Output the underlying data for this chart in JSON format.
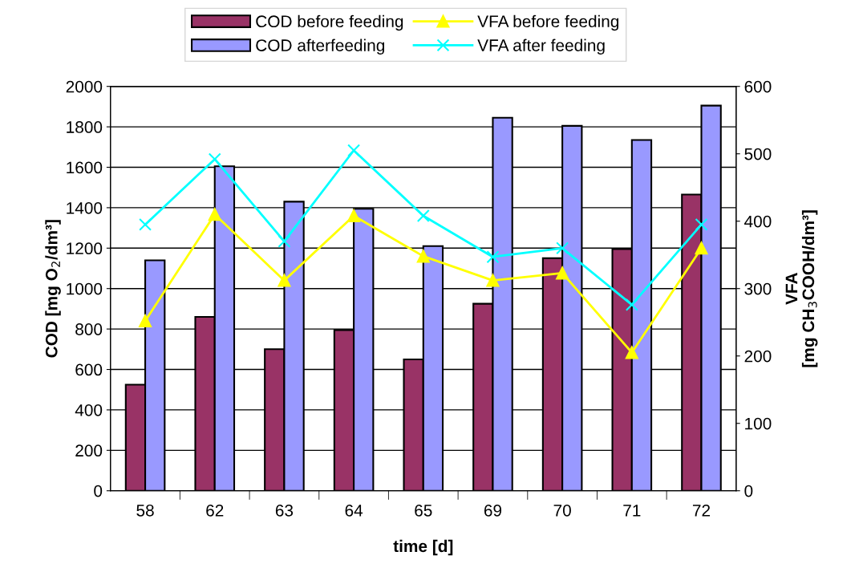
{
  "chart_data": {
    "type": "bar",
    "xlabel": "time [d]",
    "ylabel": "COD [mg O$_{2}$/dm³]",
    "y2label": "VFA\n[mg CH$_{3}$COOH/dm³]",
    "categories": [
      "58",
      "62",
      "63",
      "64",
      "65",
      "69",
      "70",
      "71",
      "72"
    ],
    "series": [
      {
        "name": "COD before feeding",
        "color": "#993366",
        "values": [
          525,
          860,
          700,
          795,
          650,
          925,
          1150,
          1195,
          1465
        ]
      },
      {
        "name": "COD afterfeeding",
        "color": "#9999ff",
        "values": [
          1140,
          1605,
          1430,
          1395,
          1210,
          1845,
          1805,
          1735,
          1905
        ]
      },
      {
        "name": "VFA before feeding",
        "type": "line",
        "axis": "y2",
        "marker": "triangle",
        "color": "#ffff00",
        "values": [
          252,
          410,
          312,
          408,
          348,
          312,
          323,
          205,
          360
        ]
      },
      {
        "name": "VFA after feeding",
        "type": "line",
        "axis": "y2",
        "marker": "cross",
        "color": "#00ffff",
        "values": [
          395,
          492,
          370,
          505,
          408,
          347,
          360,
          276,
          395
        ]
      }
    ],
    "ylim": [
      0,
      2000
    ],
    "yticks": [
      0,
      200,
      400,
      600,
      800,
      1000,
      1200,
      1400,
      1600,
      1800,
      2000
    ],
    "y2lim": [
      0,
      600
    ],
    "y2ticks": [
      0,
      100,
      200,
      300,
      400,
      500,
      600
    ],
    "grid": "y",
    "legend": "top"
  }
}
